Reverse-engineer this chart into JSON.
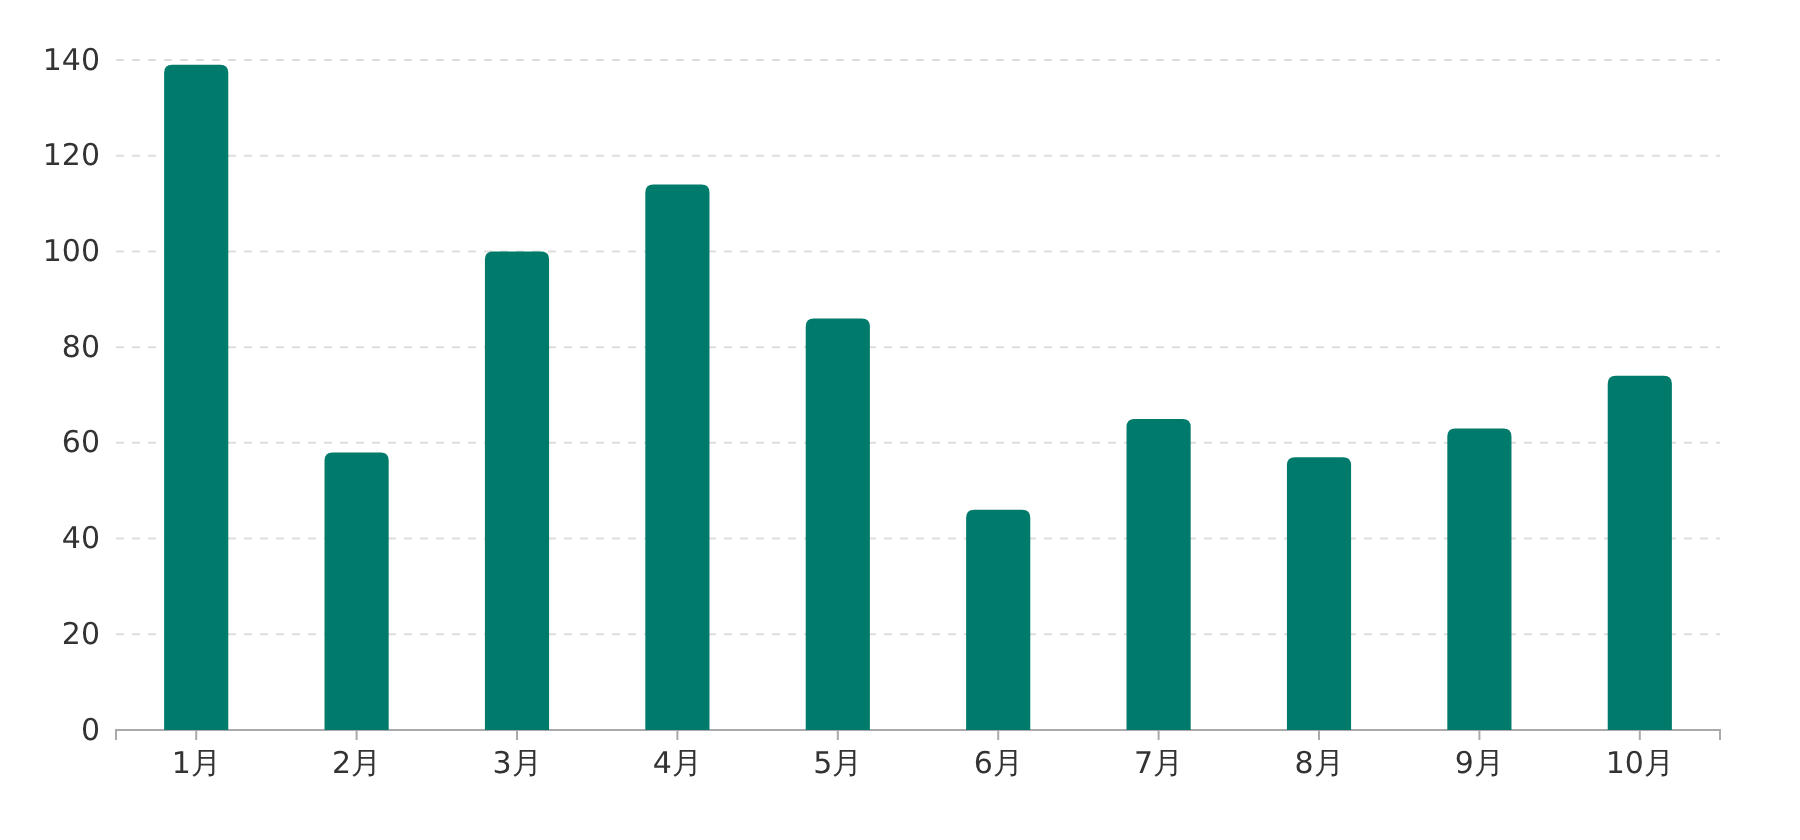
{
  "chart_data": {
    "type": "bar",
    "categories": [
      "1月",
      "2月",
      "3月",
      "4月",
      "5月",
      "6月",
      "7月",
      "8月",
      "9月",
      "10月"
    ],
    "values": [
      139,
      58,
      100,
      114,
      86,
      46,
      65,
      57,
      63,
      74
    ],
    "color": "#007a6a",
    "ylim": [
      0,
      140
    ],
    "yticks": [
      0,
      20,
      40,
      60,
      80,
      100,
      120,
      140
    ],
    "grid": "y"
  }
}
